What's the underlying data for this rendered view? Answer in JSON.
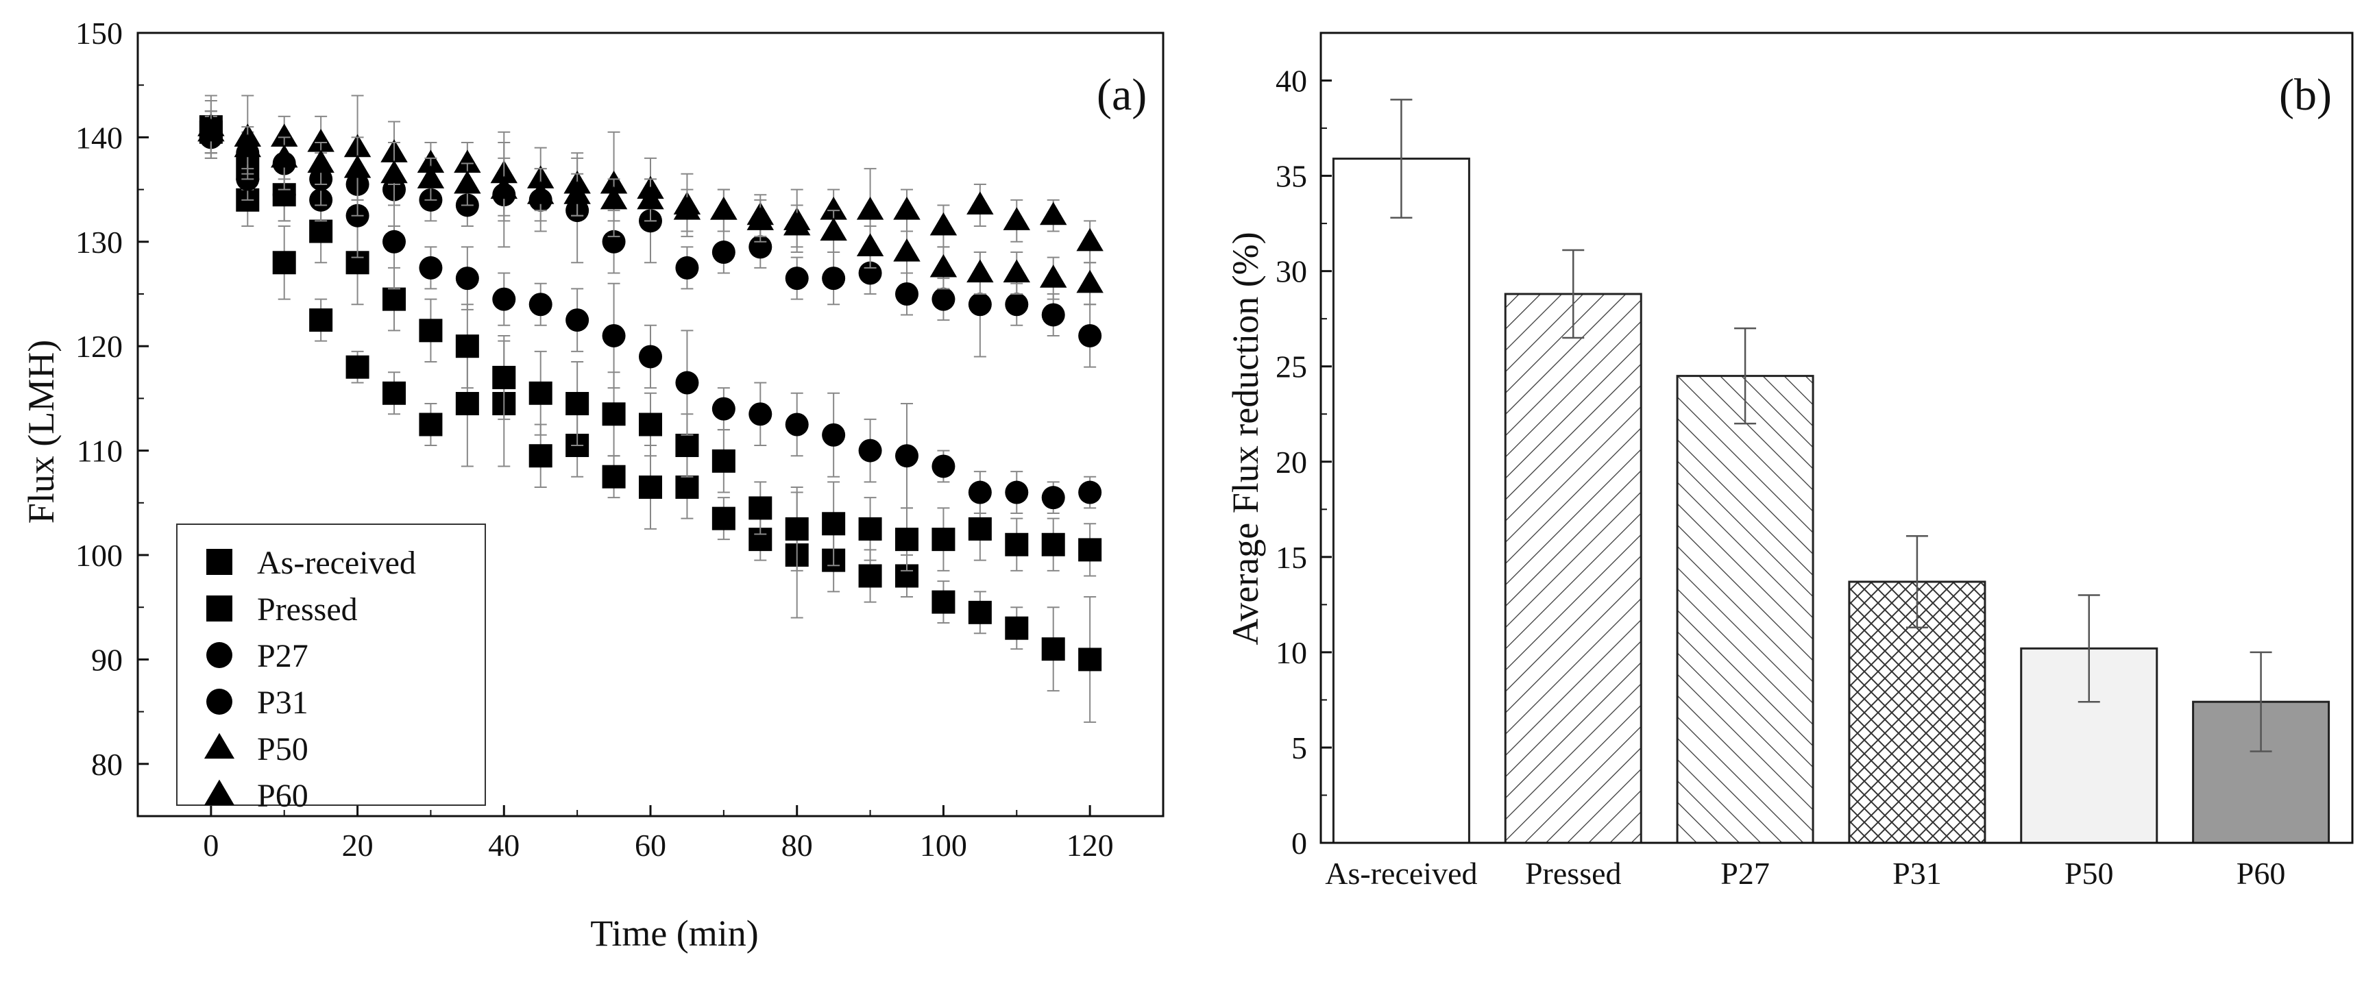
{
  "chart_data": [
    {
      "type": "scatter",
      "panel_label": "(a)",
      "xlabel": "Time (min)",
      "ylabel": "Flux (LMH)",
      "xlim": [
        -10,
        130
      ],
      "ylim": [
        75,
        150
      ],
      "xticks": [
        0,
        20,
        40,
        60,
        80,
        100,
        120
      ],
      "yticks": [
        80,
        90,
        100,
        110,
        120,
        130,
        140,
        150
      ],
      "legend_position": "bottom-left",
      "series": [
        {
          "name": "As-received",
          "marker": "square",
          "x": [
            0,
            5,
            10,
            15,
            20,
            25,
            30,
            35,
            40,
            45,
            50,
            55,
            60,
            65,
            70,
            75,
            80,
            85,
            90,
            95,
            100,
            105,
            110,
            115,
            120
          ],
          "y": [
            141,
            134,
            128,
            122.5,
            118,
            115.5,
            112.5,
            114.5,
            114.5,
            109.5,
            110.5,
            107.5,
            106.5,
            106.5,
            103.5,
            101.5,
            100,
            99.5,
            98,
            98,
            95.5,
            94.5,
            93,
            91,
            90
          ],
          "err": [
            2.5,
            2.5,
            3.5,
            2,
            1.5,
            2,
            2,
            6,
            6,
            3,
            3,
            2,
            4,
            3,
            2,
            2,
            6,
            3,
            2.5,
            2,
            2,
            2,
            2,
            4,
            6
          ]
        },
        {
          "name": "Pressed",
          "marker": "square",
          "x": [
            0,
            5,
            10,
            15,
            20,
            25,
            30,
            35,
            40,
            45,
            50,
            55,
            60,
            65,
            70,
            75,
            80,
            85,
            90,
            95,
            100,
            105,
            110,
            115,
            120
          ],
          "y": [
            140.5,
            137,
            134.5,
            131,
            128,
            124.5,
            121.5,
            120,
            117,
            115.5,
            114.5,
            113.5,
            112.5,
            110.5,
            109,
            104.5,
            102.5,
            103,
            102.5,
            101.5,
            101.5,
            102.5,
            101,
            101,
            100.5
          ],
          "err": [
            2,
            2,
            2.5,
            3,
            4,
            3,
            3,
            4,
            4,
            4,
            4,
            4,
            3,
            3,
            3,
            2.5,
            4,
            4,
            3,
            3,
            3,
            3,
            2.5,
            2.5,
            2.5
          ]
        },
        {
          "name": "P27",
          "marker": "circle",
          "x": [
            0,
            5,
            10,
            15,
            20,
            25,
            30,
            35,
            40,
            45,
            50,
            55,
            60,
            65,
            70,
            75,
            80,
            85,
            90,
            95,
            100,
            105,
            110,
            115,
            120
          ],
          "y": [
            140,
            136,
            134.5,
            134,
            132.5,
            130,
            127.5,
            126.5,
            124.5,
            124,
            122.5,
            121,
            119,
            116.5,
            114,
            113.5,
            112.5,
            111.5,
            110,
            109.5,
            108.5,
            106,
            106,
            105.5,
            106
          ],
          "err": [
            2,
            2,
            2.5,
            2,
            4,
            4.5,
            2,
            3,
            2.5,
            2,
            3,
            5,
            3,
            5,
            2,
            3,
            3,
            4,
            3,
            5,
            1.5,
            2,
            2,
            1.5,
            1.5
          ]
        },
        {
          "name": "P31",
          "marker": "circle",
          "x": [
            0,
            5,
            10,
            15,
            20,
            25,
            30,
            35,
            40,
            45,
            50,
            55,
            60,
            65,
            70,
            75,
            80,
            85,
            90,
            95,
            100,
            105,
            110,
            115,
            120
          ],
          "y": [
            140.5,
            138.5,
            137.5,
            136,
            135.5,
            135,
            134,
            133.5,
            134.5,
            134,
            133,
            130,
            132,
            127.5,
            129,
            129.5,
            126.5,
            126.5,
            127,
            125,
            124.5,
            124,
            124,
            123,
            121
          ],
          "err": [
            2,
            2,
            2.5,
            2.5,
            3,
            3.5,
            2,
            2,
            5,
            3,
            5,
            3,
            4,
            2,
            2,
            2,
            2,
            2.5,
            2,
            2,
            2,
            5,
            2,
            2,
            3
          ]
        },
        {
          "name": "P50",
          "marker": "triangle",
          "x": [
            0,
            5,
            10,
            15,
            20,
            25,
            30,
            35,
            40,
            45,
            50,
            55,
            60,
            65,
            70,
            75,
            80,
            85,
            90,
            95,
            100,
            105,
            110,
            115,
            120
          ],
          "y": [
            141,
            140,
            140,
            139.5,
            139,
            138.5,
            137.5,
            137.5,
            136.5,
            136,
            135.5,
            135.5,
            135,
            133.5,
            133,
            132.5,
            132,
            133,
            133,
            133,
            131.5,
            133.5,
            132,
            132.5,
            130
          ],
          "err": [
            3,
            4,
            2,
            2.5,
            5,
            3,
            2,
            2,
            4,
            3,
            3,
            5,
            3,
            3,
            2,
            2,
            3,
            2,
            4,
            2,
            2,
            2,
            2,
            1.5,
            2
          ]
        },
        {
          "name": "P60",
          "marker": "triangle",
          "x": [
            0,
            5,
            10,
            15,
            20,
            25,
            30,
            35,
            40,
            45,
            50,
            55,
            60,
            65,
            70,
            75,
            80,
            85,
            90,
            95,
            100,
            105,
            110,
            115,
            120
          ],
          "y": [
            140.5,
            139,
            138,
            137.5,
            137,
            136.5,
            136,
            135.5,
            135,
            134.5,
            134.5,
            134,
            134,
            133,
            133,
            132,
            131.5,
            131,
            129.5,
            129,
            127.5,
            127,
            127,
            126.5,
            126
          ],
          "err": [
            2,
            2,
            2,
            2,
            3,
            3,
            2,
            2,
            3,
            2.5,
            2,
            2,
            2,
            2,
            2,
            2,
            2,
            2,
            2,
            2,
            2,
            2,
            2,
            2,
            2
          ]
        }
      ]
    },
    {
      "type": "bar",
      "panel_label": "(b)",
      "xlabel": "",
      "ylabel": "Average Flux reduction (%)",
      "ylim": [
        0,
        42.5
      ],
      "yticks": [
        0,
        5,
        10,
        15,
        20,
        25,
        30,
        35,
        40
      ],
      "categories": [
        "As-received",
        "Pressed",
        "P27",
        "P31",
        "P50",
        "P60"
      ],
      "values": [
        35.9,
        28.8,
        24.5,
        13.7,
        10.2,
        7.4
      ],
      "errors": [
        3.1,
        2.3,
        2.5,
        2.4,
        2.8,
        2.6
      ],
      "fills": [
        "none",
        "hatch-diagonal-right",
        "hatch-diagonal-left",
        "crosshatch",
        "#f2f2f2",
        "#999999"
      ]
    }
  ]
}
